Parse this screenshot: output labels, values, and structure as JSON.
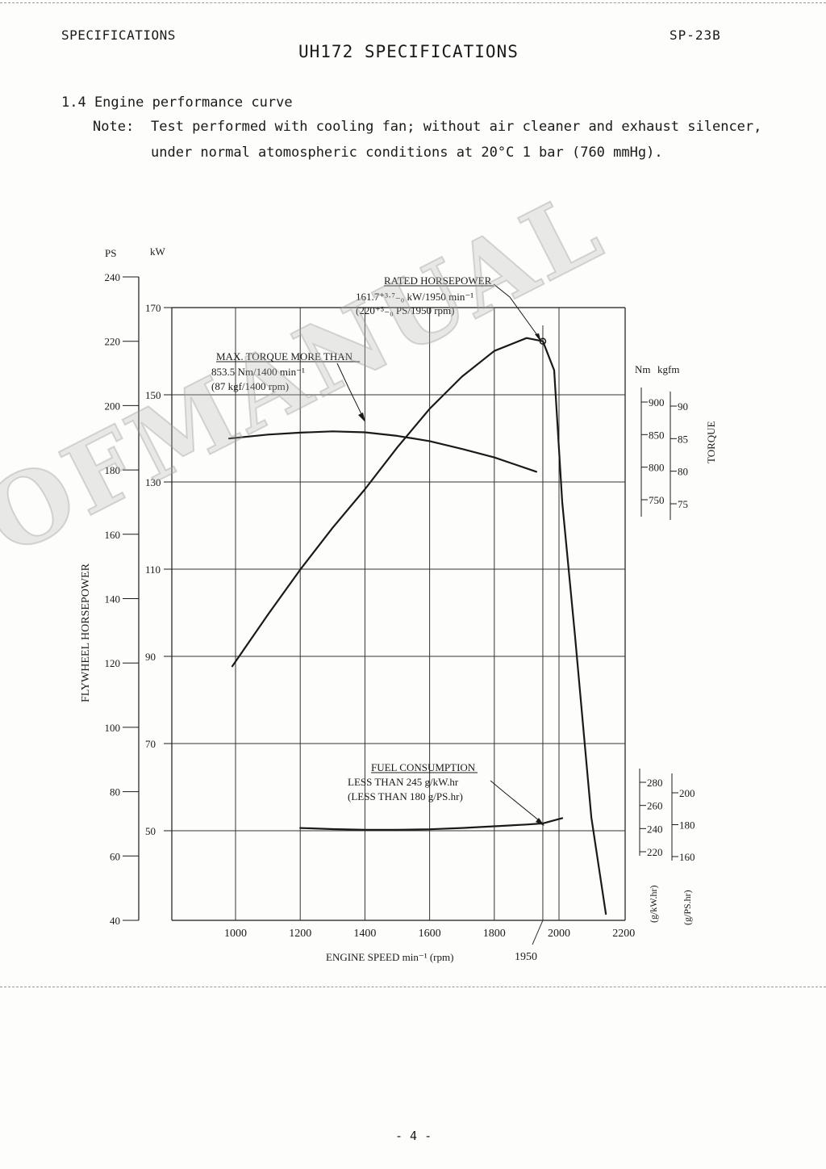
{
  "header": {
    "left": "SPECIFICATIONS",
    "right": "SP-23B",
    "title": "UH172 SPECIFICATIONS"
  },
  "section": {
    "heading": "1.4 Engine performance curve",
    "note_label": "Note:",
    "note_line1": "Test performed with cooling fan; without air cleaner and exhaust silencer,",
    "note_line2": "under normal atomospheric conditions at 20°C 1 bar (760 mmHg)."
  },
  "page_number": "- 4 -",
  "watermark": "OFMANUAL",
  "chart_data": {
    "type": "line",
    "xlabel": "ENGINE SPEED  min⁻¹ (rpm)",
    "xlim": [
      800,
      2200
    ],
    "x_ticks": [
      "1000",
      "1200",
      "1400",
      "1600",
      "1800",
      "2000",
      "2200"
    ],
    "x_extra_tick": "1950",
    "left_axis": {
      "label": "FLYWHEEL HORSEPOWER",
      "ps_unit": "PS",
      "kw_unit": "kW",
      "ps_range": [
        40,
        240
      ],
      "ps_ticks": [
        "240",
        "220",
        "200",
        "180",
        "160",
        "140",
        "120",
        "100",
        "80",
        "60",
        "40"
      ],
      "kw_ticks": [
        "170",
        "150",
        "130",
        "110",
        "90",
        "70",
        "50"
      ]
    },
    "torque_axis": {
      "label": "TORQUE",
      "nm_unit": "Nm",
      "kgfm_unit": "kgfm",
      "nm_ticks": [
        "900",
        "850",
        "800",
        "750"
      ],
      "kgfm_ticks": [
        "90",
        "85",
        "80",
        "75"
      ]
    },
    "fuel_axis": {
      "unit_kw": "(g/kW.hr)",
      "unit_ps": "(g/PS.hr)",
      "kw_ticks": [
        "280",
        "260",
        "240",
        "220"
      ],
      "ps_ticks": [
        "200",
        "180",
        "160"
      ]
    },
    "series": [
      {
        "key": "power",
        "unit": "PS",
        "x": [
          990,
          1100,
          1200,
          1300,
          1400,
          1500,
          1600,
          1700,
          1800,
          1900,
          1950,
          1985,
          2010,
          2050,
          2100,
          2145
        ],
        "y": [
          119,
          135,
          149,
          162,
          174,
          187,
          199,
          209,
          217,
          221,
          220,
          211,
          170,
          128,
          72,
          42
        ]
      },
      {
        "key": "torque",
        "unit": "Nm",
        "x": [
          980,
          1100,
          1200,
          1300,
          1400,
          1500,
          1600,
          1700,
          1800,
          1930
        ],
        "y": [
          844,
          850,
          853,
          855,
          853.5,
          848,
          840,
          828,
          815,
          793
        ]
      },
      {
        "key": "fuel",
        "unit": "g/kW.hr",
        "x": [
          1200,
          1300,
          1400,
          1500,
          1600,
          1700,
          1800,
          1900,
          1950,
          2010
        ],
        "y": [
          240.5,
          239.5,
          239,
          239,
          239.4,
          240.5,
          242,
          243.5,
          244.5,
          249
        ]
      }
    ],
    "annotations": {
      "rated_title": "RATED HORSEPOWER",
      "rated_line1": "161.7⁺³·⁷₋₀ kW/1950 min⁻¹",
      "rated_line2": "(220⁺⁵₋₀ PS/1950 rpm)",
      "torque_title": "MAX. TORQUE  MORE THAN",
      "torque_line1": "853.5 Nm/1400 min⁻¹",
      "torque_line2": "(87 kgf/1400 rpm)",
      "fuel_title": "FUEL CONSUMPTION",
      "fuel_line1": "LESS THAN 245 g/kW.hr",
      "fuel_line2": "(LESS THAN 180 g/PS.hr)"
    },
    "grid": true
  }
}
